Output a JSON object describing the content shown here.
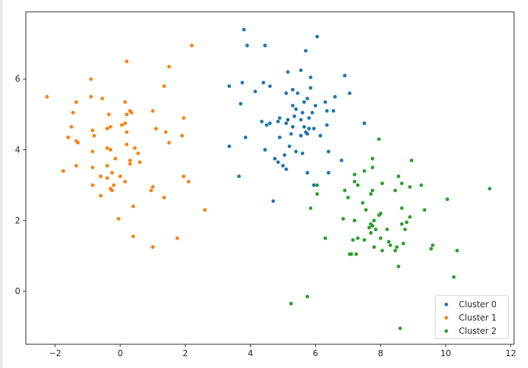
{
  "chart_data": {
    "type": "scatter",
    "title": "",
    "xlabel": "",
    "ylabel": "",
    "xlim": [
      -2.9,
      12.1
    ],
    "ylim": [
      -1.5,
      7.9
    ],
    "xticks": [
      -2,
      0,
      2,
      4,
      6,
      8,
      10,
      12
    ],
    "yticks": [
      0,
      2,
      4,
      6
    ],
    "grid": false,
    "legend_position": "lower-right",
    "series": [
      {
        "name": "Cluster 0",
        "color": "#1f77b4",
        "points": [
          [
            3.8,
            7.4
          ],
          [
            6.05,
            7.2
          ],
          [
            3.9,
            6.95
          ],
          [
            4.45,
            6.95
          ],
          [
            5.7,
            6.8
          ],
          [
            5.15,
            6.2
          ],
          [
            5.55,
            6.25
          ],
          [
            6.9,
            6.1
          ],
          [
            5.85,
            6.05
          ],
          [
            4.4,
            5.9
          ],
          [
            3.75,
            5.9
          ],
          [
            4.6,
            5.8
          ],
          [
            3.35,
            5.8
          ],
          [
            5.85,
            5.75
          ],
          [
            5.3,
            5.7
          ],
          [
            4.15,
            5.65
          ],
          [
            5.1,
            5.6
          ],
          [
            5.45,
            5.6
          ],
          [
            7.05,
            5.6
          ],
          [
            6.6,
            5.5
          ],
          [
            5.75,
            5.45
          ],
          [
            5.65,
            5.35
          ],
          [
            6.3,
            5.35
          ],
          [
            3.7,
            5.3
          ],
          [
            6.0,
            5.25
          ],
          [
            5.3,
            5.25
          ],
          [
            5.4,
            5.15
          ],
          [
            6.55,
            5.1
          ],
          [
            6.35,
            5.1
          ],
          [
            5.9,
            5.05
          ],
          [
            5.6,
            5.05
          ],
          [
            5.35,
            4.95
          ],
          [
            4.9,
            4.9
          ],
          [
            5.8,
            4.9
          ],
          [
            5.15,
            4.85
          ],
          [
            5.55,
            4.85
          ],
          [
            4.85,
            4.8
          ],
          [
            4.35,
            4.8
          ],
          [
            4.6,
            4.75
          ],
          [
            5.1,
            4.75
          ],
          [
            7.5,
            4.75
          ],
          [
            6.35,
            4.7
          ],
          [
            4.5,
            4.7
          ],
          [
            5.65,
            4.65
          ],
          [
            5.3,
            4.65
          ],
          [
            5.8,
            4.6
          ],
          [
            5.95,
            4.6
          ],
          [
            5.7,
            4.5
          ],
          [
            5.75,
            4.45
          ],
          [
            5.25,
            4.45
          ],
          [
            6.15,
            4.4
          ],
          [
            4.9,
            4.35
          ],
          [
            3.85,
            4.35
          ],
          [
            5.55,
            4.4
          ],
          [
            5.2,
            4.1
          ],
          [
            3.35,
            4.1
          ],
          [
            4.45,
            4.0
          ],
          [
            5.4,
            3.95
          ],
          [
            5.6,
            3.9
          ],
          [
            6.4,
            3.95
          ],
          [
            5.05,
            3.85
          ],
          [
            4.75,
            3.75
          ],
          [
            4.85,
            3.65
          ],
          [
            6.8,
            3.7
          ],
          [
            5.0,
            3.55
          ],
          [
            5.1,
            3.45
          ],
          [
            5.75,
            3.35
          ],
          [
            6.4,
            3.35
          ],
          [
            3.65,
            3.25
          ],
          [
            5.95,
            3.0
          ],
          [
            4.7,
            2.55
          ]
        ]
      },
      {
        "name": "Cluster 1",
        "color": "#ff7f0e",
        "points": [
          [
            2.2,
            6.95
          ],
          [
            0.2,
            6.5
          ],
          [
            1.5,
            6.35
          ],
          [
            -0.9,
            6.0
          ],
          [
            1.35,
            5.8
          ],
          [
            -2.25,
            5.5
          ],
          [
            -0.9,
            5.5
          ],
          [
            -0.55,
            5.45
          ],
          [
            -1.35,
            5.35
          ],
          [
            0.15,
            5.35
          ],
          [
            0.3,
            5.1
          ],
          [
            -1.45,
            5.05
          ],
          [
            0.2,
            5.0
          ],
          [
            0.35,
            5.05
          ],
          [
            1.0,
            5.1
          ],
          [
            -0.35,
            5.0
          ],
          [
            1.95,
            4.9
          ],
          [
            0.15,
            4.75
          ],
          [
            0.05,
            4.7
          ],
          [
            -0.4,
            4.6
          ],
          [
            -0.3,
            4.65
          ],
          [
            -0.85,
            4.55
          ],
          [
            -1.5,
            4.65
          ],
          [
            1.1,
            4.6
          ],
          [
            1.4,
            4.5
          ],
          [
            0.2,
            4.5
          ],
          [
            -0.8,
            4.4
          ],
          [
            -1.6,
            4.35
          ],
          [
            1.9,
            4.4
          ],
          [
            -1.35,
            4.25
          ],
          [
            -1.3,
            4.2
          ],
          [
            1.5,
            4.2
          ],
          [
            0.2,
            4.15
          ],
          [
            0.45,
            4.05
          ],
          [
            -0.4,
            4.05
          ],
          [
            -0.3,
            4.0
          ],
          [
            -0.85,
            3.95
          ],
          [
            0.55,
            3.9
          ],
          [
            -0.15,
            3.75
          ],
          [
            0.3,
            3.7
          ],
          [
            0.6,
            3.65
          ],
          [
            0.3,
            3.6
          ],
          [
            -0.4,
            3.55
          ],
          [
            -1.35,
            3.55
          ],
          [
            -0.85,
            3.5
          ],
          [
            -1.75,
            3.4
          ],
          [
            -0.25,
            3.35
          ],
          [
            0.0,
            3.25
          ],
          [
            1.95,
            3.25
          ],
          [
            -0.6,
            3.25
          ],
          [
            -0.4,
            3.2
          ],
          [
            0.15,
            3.1
          ],
          [
            2.1,
            3.1
          ],
          [
            -0.2,
            3.0
          ],
          [
            -0.85,
            3.0
          ],
          [
            1.0,
            2.95
          ],
          [
            0.95,
            2.85
          ],
          [
            -0.3,
            2.9
          ],
          [
            -0.25,
            2.85
          ],
          [
            -0.6,
            2.7
          ],
          [
            1.35,
            2.65
          ],
          [
            0.4,
            2.4
          ],
          [
            2.6,
            2.3
          ],
          [
            -0.05,
            2.05
          ],
          [
            0.4,
            1.55
          ],
          [
            1.75,
            1.5
          ],
          [
            1.0,
            1.25
          ]
        ]
      },
      {
        "name": "Cluster 2",
        "color": "#2ca02c",
        "points": [
          [
            7.95,
            4.3
          ],
          [
            7.75,
            3.75
          ],
          [
            8.95,
            3.7
          ],
          [
            7.75,
            3.5
          ],
          [
            7.5,
            3.4
          ],
          [
            7.2,
            3.3
          ],
          [
            8.55,
            3.25
          ],
          [
            8.05,
            3.05
          ],
          [
            9.25,
            3.0
          ],
          [
            7.3,
            3.0
          ],
          [
            8.9,
            2.95
          ],
          [
            8.65,
            3.05
          ],
          [
            6.05,
            3.0
          ],
          [
            6.05,
            2.75
          ],
          [
            7.2,
            3.1
          ],
          [
            6.9,
            2.85
          ],
          [
            7.75,
            2.85
          ],
          [
            8.45,
            2.85
          ],
          [
            7.7,
            2.75
          ],
          [
            11.35,
            2.9
          ],
          [
            7.0,
            2.65
          ],
          [
            10.05,
            2.6
          ],
          [
            7.45,
            2.5
          ],
          [
            8.65,
            2.35
          ],
          [
            9.35,
            2.3
          ],
          [
            7.55,
            2.3
          ],
          [
            5.85,
            2.35
          ],
          [
            8.0,
            2.2
          ],
          [
            7.95,
            2.15
          ],
          [
            8.9,
            2.1
          ],
          [
            6.85,
            2.05
          ],
          [
            7.2,
            2.0
          ],
          [
            7.8,
            2.0
          ],
          [
            7.7,
            1.9
          ],
          [
            8.8,
            1.95
          ],
          [
            8.65,
            1.9
          ],
          [
            7.75,
            1.85
          ],
          [
            7.65,
            1.8
          ],
          [
            7.85,
            1.75
          ],
          [
            8.2,
            1.75
          ],
          [
            8.75,
            1.75
          ],
          [
            7.7,
            1.65
          ],
          [
            8.0,
            1.5
          ],
          [
            7.3,
            1.5
          ],
          [
            6.3,
            1.5
          ],
          [
            7.15,
            1.45
          ],
          [
            7.5,
            1.45
          ],
          [
            8.25,
            1.4
          ],
          [
            8.7,
            1.35
          ],
          [
            8.3,
            1.3
          ],
          [
            9.6,
            1.3
          ],
          [
            7.8,
            1.25
          ],
          [
            8.5,
            1.25
          ],
          [
            9.55,
            1.2
          ],
          [
            8.05,
            1.15
          ],
          [
            10.35,
            1.15
          ],
          [
            8.45,
            1.15
          ],
          [
            7.1,
            1.05
          ],
          [
            7.05,
            1.05
          ],
          [
            7.25,
            1.05
          ],
          [
            8.55,
            0.7
          ],
          [
            10.25,
            0.4
          ],
          [
            5.75,
            -0.15
          ],
          [
            5.25,
            -0.35
          ],
          [
            8.6,
            -1.05
          ]
        ]
      }
    ]
  }
}
